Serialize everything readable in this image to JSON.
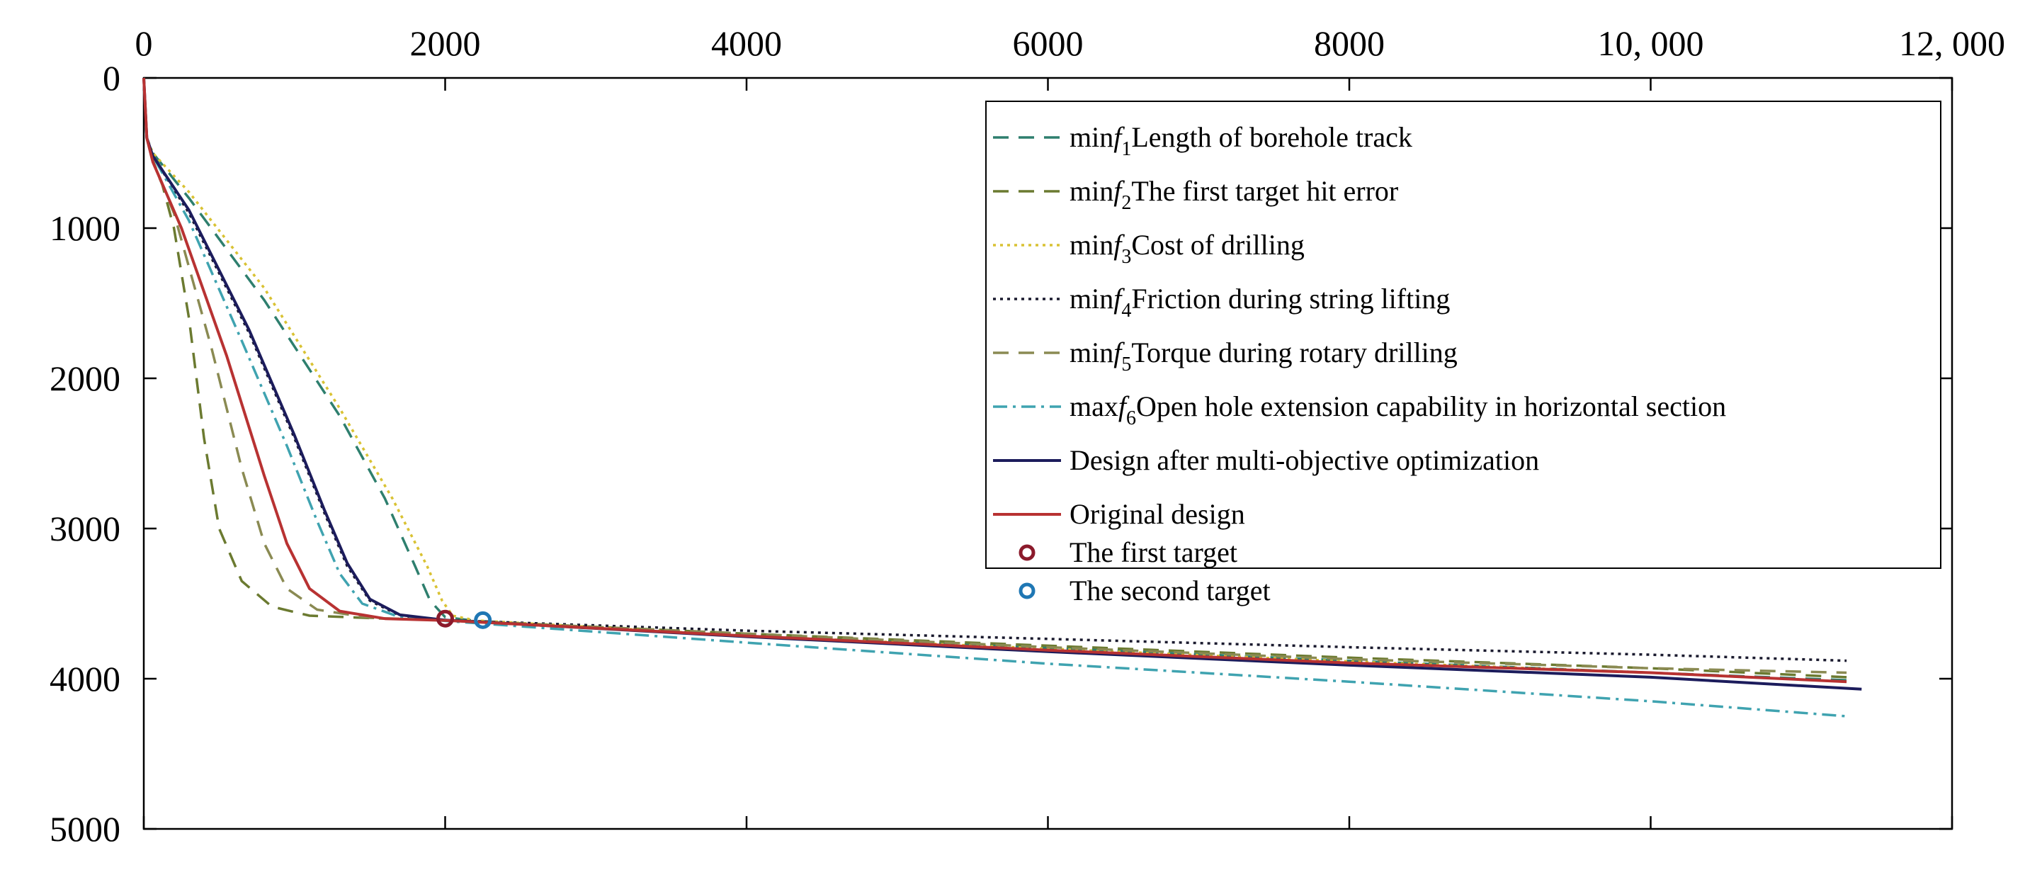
{
  "chart_data": {
    "type": "line",
    "title": "",
    "xlabel": "",
    "ylabel": "",
    "xlim": [
      0,
      12000
    ],
    "ylim": [
      0,
      5000
    ],
    "y_inverted": true,
    "x_axis_position": "top",
    "grid": false,
    "legend_position": "top-right",
    "x_ticks": [
      0,
      2000,
      4000,
      6000,
      8000,
      10000,
      12000
    ],
    "x_tick_labels": [
      "0",
      "2000",
      "4000",
      "6000",
      "8000",
      "10, 000",
      "12, 000"
    ],
    "y_ticks": [
      0,
      1000,
      2000,
      3000,
      4000,
      5000
    ],
    "y_tick_labels": [
      "0",
      "1000",
      "2000",
      "3000",
      "4000",
      "5000"
    ],
    "series": [
      {
        "name": {
          "pre": "min",
          "f": "f",
          "sub": "1",
          "text": "Length of borehole track"
        },
        "color": "#2e7f6e",
        "style": "dashed",
        "points": [
          [
            0,
            0
          ],
          [
            20,
            400
          ],
          [
            60,
            500
          ],
          [
            300,
            800
          ],
          [
            800,
            1480
          ],
          [
            1300,
            2250
          ],
          [
            1600,
            2800
          ],
          [
            1800,
            3250
          ],
          [
            1900,
            3480
          ],
          [
            2000,
            3590
          ],
          [
            2200,
            3615
          ],
          [
            4000,
            3710
          ],
          [
            6000,
            3795
          ],
          [
            8000,
            3880
          ],
          [
            10000,
            3960
          ],
          [
            11300,
            4010
          ]
        ]
      },
      {
        "name": {
          "pre": "min",
          "f": "f",
          "sub": "2",
          "text": "The first target hit error"
        },
        "color": "#6b7a30",
        "style": "dashed",
        "points": [
          [
            0,
            0
          ],
          [
            20,
            400
          ],
          [
            60,
            550
          ],
          [
            120,
            700
          ],
          [
            200,
            1000
          ],
          [
            300,
            1600
          ],
          [
            400,
            2400
          ],
          [
            500,
            3000
          ],
          [
            650,
            3350
          ],
          [
            850,
            3520
          ],
          [
            1100,
            3580
          ],
          [
            1600,
            3600
          ],
          [
            2000,
            3610
          ],
          [
            4000,
            3700
          ],
          [
            6000,
            3780
          ],
          [
            8000,
            3860
          ],
          [
            10000,
            3930
          ],
          [
            11300,
            3990
          ]
        ]
      },
      {
        "name": {
          "pre": " min",
          "f": "f",
          "sub": "3",
          "text": "Cost of drilling"
        },
        "color": "#d9c233",
        "style": "dotted",
        "points": [
          [
            0,
            0
          ],
          [
            20,
            400
          ],
          [
            60,
            500
          ],
          [
            300,
            760
          ],
          [
            800,
            1400
          ],
          [
            1300,
            2200
          ],
          [
            1650,
            2800
          ],
          [
            1880,
            3250
          ],
          [
            1980,
            3480
          ],
          [
            2050,
            3580
          ],
          [
            2200,
            3612
          ],
          [
            4000,
            3715
          ],
          [
            6000,
            3800
          ],
          [
            8000,
            3885
          ],
          [
            10000,
            3960
          ],
          [
            11300,
            4020
          ]
        ]
      },
      {
        "name": {
          "pre": "min",
          "f": "f",
          "sub": "4",
          "text": "Friction during string lifting"
        },
        "color": "#1a1a2e",
        "style": "dotted",
        "points": [
          [
            0,
            0
          ],
          [
            20,
            400
          ],
          [
            60,
            520
          ],
          [
            300,
            900
          ],
          [
            700,
            1700
          ],
          [
            1000,
            2400
          ],
          [
            1200,
            2900
          ],
          [
            1350,
            3250
          ],
          [
            1500,
            3480
          ],
          [
            1700,
            3580
          ],
          [
            2000,
            3610
          ],
          [
            4000,
            3680
          ],
          [
            6000,
            3735
          ],
          [
            8000,
            3790
          ],
          [
            10000,
            3840
          ],
          [
            11300,
            3880
          ]
        ]
      },
      {
        "name": {
          "pre": "min",
          "f": "f",
          "sub": "5",
          "text": "Torque during rotary drilling"
        },
        "color": "#8a8a52",
        "style": "dashed",
        "points": [
          [
            0,
            0
          ],
          [
            20,
            400
          ],
          [
            60,
            560
          ],
          [
            200,
            900
          ],
          [
            450,
            1800
          ],
          [
            650,
            2600
          ],
          [
            800,
            3100
          ],
          [
            950,
            3400
          ],
          [
            1150,
            3540
          ],
          [
            1500,
            3595
          ],
          [
            2000,
            3610
          ],
          [
            4000,
            3700
          ],
          [
            6000,
            3790
          ],
          [
            8000,
            3870
          ],
          [
            10000,
            3930
          ],
          [
            11300,
            3960
          ]
        ]
      },
      {
        "name": {
          "pre": "max",
          "f": "f",
          "sub": "6",
          "text": "Open hole extension capability in horizontal section"
        },
        "color": "#3fa3b0",
        "style": "dashdot",
        "points": [
          [
            0,
            0
          ],
          [
            20,
            400
          ],
          [
            60,
            520
          ],
          [
            300,
            950
          ],
          [
            650,
            1750
          ],
          [
            950,
            2450
          ],
          [
            1150,
            2950
          ],
          [
            1300,
            3300
          ],
          [
            1450,
            3500
          ],
          [
            1700,
            3590
          ],
          [
            2000,
            3615
          ],
          [
            4000,
            3760
          ],
          [
            6000,
            3900
          ],
          [
            8000,
            4020
          ],
          [
            10000,
            4150
          ],
          [
            11300,
            4250
          ]
        ]
      },
      {
        "name": {
          "pre": "",
          "f": "",
          "sub": "",
          "text": "Design after multi-objective optimization"
        },
        "color": "#1c1c5c",
        "style": "solid",
        "points": [
          [
            0,
            0
          ],
          [
            20,
            400
          ],
          [
            60,
            520
          ],
          [
            300,
            880
          ],
          [
            700,
            1680
          ],
          [
            1000,
            2380
          ],
          [
            1200,
            2880
          ],
          [
            1350,
            3230
          ],
          [
            1500,
            3470
          ],
          [
            1700,
            3575
          ],
          [
            2000,
            3610
          ],
          [
            4000,
            3720
          ],
          [
            6000,
            3820
          ],
          [
            8000,
            3910
          ],
          [
            10000,
            3990
          ],
          [
            11400,
            4070
          ]
        ]
      },
      {
        "name": {
          "pre": "",
          "f": "",
          "sub": "",
          "text": "Original design"
        },
        "color": "#b83232",
        "style": "solid",
        "points": [
          [
            0,
            0
          ],
          [
            20,
            400
          ],
          [
            60,
            560
          ],
          [
            250,
            1000
          ],
          [
            550,
            1850
          ],
          [
            800,
            2650
          ],
          [
            950,
            3100
          ],
          [
            1100,
            3400
          ],
          [
            1300,
            3550
          ],
          [
            1600,
            3600
          ],
          [
            2000,
            3612
          ],
          [
            4000,
            3715
          ],
          [
            6000,
            3810
          ],
          [
            8000,
            3895
          ],
          [
            10000,
            3960
          ],
          [
            11300,
            4020
          ]
        ]
      }
    ],
    "markers": [
      {
        "name": "The first target",
        "x": 2000,
        "y": 3600,
        "color": "#8b1a2b"
      },
      {
        "name": "The second target",
        "x": 2250,
        "y": 3610,
        "color": "#1f77b4"
      }
    ]
  }
}
